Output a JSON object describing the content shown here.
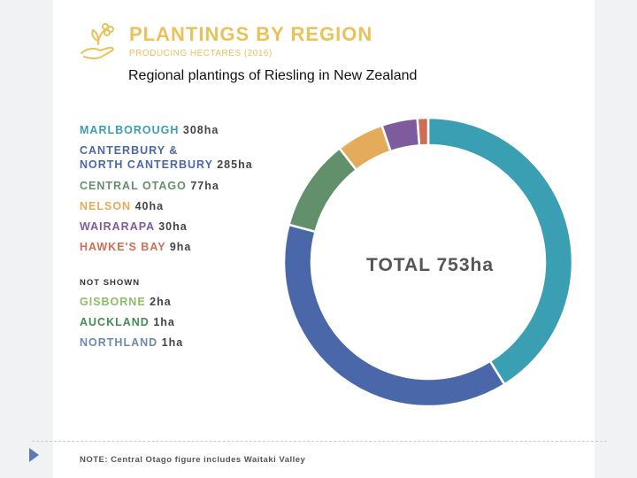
{
  "header": {
    "title": "PLANTINGS BY REGION",
    "subtitle": "PRODUCING HECTARES (2016)",
    "caption": "Regional plantings of Riesling in New Zealand"
  },
  "chart_data": {
    "type": "pie",
    "style": "donut",
    "title": "PLANTINGS BY REGION",
    "subtitle": "PRODUCING HECTARES (2016)",
    "center_label": "TOTAL 753ha",
    "unit": "ha",
    "series": [
      {
        "name": "MARLBOROUGH",
        "value": 308,
        "color": "#3a9fb3"
      },
      {
        "name": "CANTERBURY & NORTH CANTERBURY",
        "value": 285,
        "color": "#4a68a9"
      },
      {
        "name": "CENTRAL OTAGO",
        "value": 77,
        "color": "#62906b"
      },
      {
        "name": "NELSON",
        "value": 40,
        "color": "#e4ac5a"
      },
      {
        "name": "WAIRARAPA",
        "value": 30,
        "color": "#7e5b9c"
      },
      {
        "name": "HAWKE'S BAY",
        "value": 9,
        "color": "#cf6e55"
      }
    ],
    "legend": [
      {
        "line1": "MARLBOROUGH",
        "value": "308ha",
        "color": "#3a9fb3"
      },
      {
        "line1": "CANTERBURY &",
        "line2": "NORTH CANTERBURY",
        "value": "285ha",
        "color": "#4a68a9"
      },
      {
        "line1": "CENTRAL OTAGO",
        "value": "77ha",
        "color": "#62906b"
      },
      {
        "line1": "NELSON",
        "value": "40ha",
        "color": "#e4ac5a"
      },
      {
        "line1": "WAIRARAPA",
        "value": "30ha",
        "color": "#7e5b9c"
      },
      {
        "line1": "HAWKE'S BAY",
        "value": "9ha",
        "color": "#cf6e55"
      }
    ],
    "not_shown_label": "NOT SHOWN",
    "not_shown": [
      {
        "name": "GISBORNE",
        "value": "2ha",
        "color": "#8bbf63"
      },
      {
        "name": "AUCKLAND",
        "value": "1ha",
        "color": "#3f8d57"
      },
      {
        "name": "NORTHLAND",
        "value": "1ha",
        "color": "#6d8aaa"
      }
    ],
    "legend_position": "left",
    "note": "NOTE: Central Otago figure includes Waitaki Valley"
  }
}
